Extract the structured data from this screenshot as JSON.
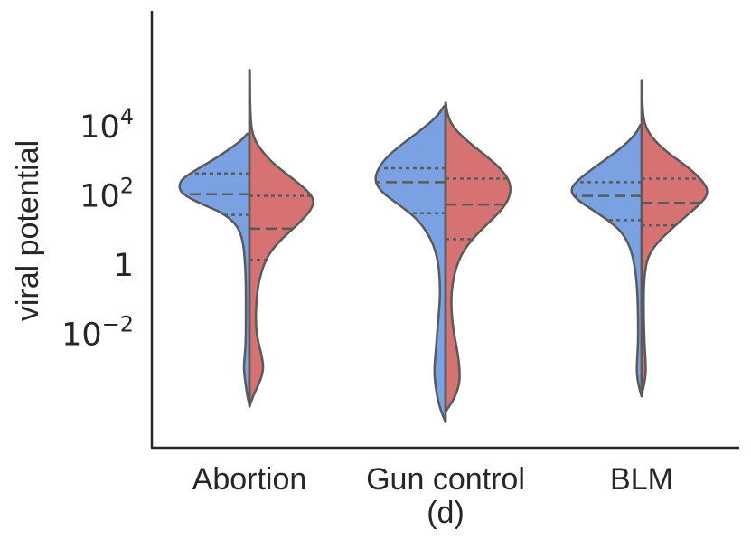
{
  "chart_data": {
    "type": "violin",
    "split": true,
    "scale": "log10",
    "ylabel": "viral potential",
    "caption": "(d)",
    "colors": {
      "left": "#7aa2e3",
      "right": "#d77272",
      "outline": "#5a5a5a",
      "axis": "#262626"
    },
    "yticks": [
      {
        "exp": "4",
        "label": "10"
      },
      {
        "exp": "2",
        "label": "10"
      },
      {
        "exp": "0",
        "label": "1"
      },
      {
        "exp": "-2",
        "label": "10"
      }
    ],
    "categories": [
      {
        "name": "Abortion",
        "min": -4.1,
        "max": 5.65,
        "left": {
          "top": 3.8,
          "bottom": -4.05,
          "profile": [
            [
              3.8,
              0.03
            ],
            [
              3.6,
              0.12
            ],
            [
              3.3,
              0.32
            ],
            [
              3.0,
              0.55
            ],
            [
              2.7,
              0.8
            ],
            [
              2.5,
              0.95
            ],
            [
              2.3,
              1.0
            ],
            [
              2.1,
              0.97
            ],
            [
              1.9,
              0.82
            ],
            [
              1.7,
              0.6
            ],
            [
              1.5,
              0.38
            ],
            [
              1.2,
              0.2
            ],
            [
              0.9,
              0.12
            ],
            [
              0.5,
              0.08
            ],
            [
              0,
              0.06
            ],
            [
              -0.6,
              0.05
            ],
            [
              -1.2,
              0.05
            ],
            [
              -2.0,
              0.05
            ],
            [
              -2.5,
              0.06
            ],
            [
              -2.9,
              0.08
            ],
            [
              -3.2,
              0.07
            ],
            [
              -3.5,
              0.05
            ],
            [
              -3.8,
              0.03
            ],
            [
              -4.05,
              0.0
            ]
          ],
          "quartiles": [
            1.45,
            2.05,
            2.65
          ]
        },
        "right": {
          "top": 5.65,
          "bottom": -4.1,
          "profile": [
            [
              5.65,
              0.005
            ],
            [
              4.5,
              0.01
            ],
            [
              3.9,
              0.03
            ],
            [
              3.5,
              0.1
            ],
            [
              3.0,
              0.3
            ],
            [
              2.6,
              0.55
            ],
            [
              2.2,
              0.8
            ],
            [
              1.9,
              0.92
            ],
            [
              1.6,
              0.88
            ],
            [
              1.2,
              0.7
            ],
            [
              0.8,
              0.48
            ],
            [
              0.4,
              0.3
            ],
            [
              0,
              0.2
            ],
            [
              -0.5,
              0.13
            ],
            [
              -1.0,
              0.1
            ],
            [
              -1.5,
              0.09
            ],
            [
              -2.0,
              0.1
            ],
            [
              -2.5,
              0.16
            ],
            [
              -2.9,
              0.2
            ],
            [
              -3.2,
              0.18
            ],
            [
              -3.5,
              0.12
            ],
            [
              -3.8,
              0.05
            ],
            [
              -4.1,
              0.0
            ]
          ],
          "quartiles": [
            0.15,
            1.05,
            2.0
          ]
        }
      },
      {
        "name": "Gun control",
        "min": -4.55,
        "max": 4.7,
        "left": {
          "top": 4.6,
          "bottom": -4.55,
          "profile": [
            [
              4.6,
              0.02
            ],
            [
              4.3,
              0.12
            ],
            [
              3.9,
              0.35
            ],
            [
              3.5,
              0.62
            ],
            [
              3.1,
              0.85
            ],
            [
              2.7,
              0.98
            ],
            [
              2.4,
              1.0
            ],
            [
              2.1,
              0.9
            ],
            [
              1.8,
              0.7
            ],
            [
              1.5,
              0.5
            ],
            [
              1.2,
              0.35
            ],
            [
              0.8,
              0.22
            ],
            [
              0.4,
              0.14
            ],
            [
              0,
              0.1
            ],
            [
              -0.5,
              0.08
            ],
            [
              -1.0,
              0.08
            ],
            [
              -1.5,
              0.1
            ],
            [
              -2.0,
              0.12
            ],
            [
              -2.5,
              0.14
            ],
            [
              -3.0,
              0.16
            ],
            [
              -3.4,
              0.15
            ],
            [
              -3.8,
              0.12
            ],
            [
              -4.2,
              0.07
            ],
            [
              -4.55,
              0.0
            ]
          ],
          "quartiles": [
            1.5,
            2.4,
            2.8
          ]
        },
        "right": {
          "top": 4.7,
          "bottom": -4.25,
          "profile": [
            [
              4.7,
              0.005
            ],
            [
              4.4,
              0.02
            ],
            [
              4.0,
              0.1
            ],
            [
              3.6,
              0.3
            ],
            [
              3.2,
              0.55
            ],
            [
              2.8,
              0.78
            ],
            [
              2.4,
              0.92
            ],
            [
              2.0,
              0.92
            ],
            [
              1.6,
              0.8
            ],
            [
              1.2,
              0.6
            ],
            [
              0.8,
              0.4
            ],
            [
              0.4,
              0.25
            ],
            [
              0,
              0.16
            ],
            [
              -0.5,
              0.1
            ],
            [
              -1.0,
              0.08
            ],
            [
              -1.5,
              0.09
            ],
            [
              -2.0,
              0.12
            ],
            [
              -2.5,
              0.17
            ],
            [
              -3.0,
              0.2
            ],
            [
              -3.4,
              0.2
            ],
            [
              -3.8,
              0.14
            ],
            [
              -4.1,
              0.05
            ],
            [
              -4.25,
              0.0
            ]
          ],
          "quartiles": [
            0.75,
            1.75,
            2.5
          ]
        }
      },
      {
        "name": "BLM",
        "min": -3.8,
        "max": 5.35,
        "left": {
          "top": 4.05,
          "bottom": -3.8,
          "profile": [
            [
              4.05,
              0.02
            ],
            [
              3.8,
              0.08
            ],
            [
              3.4,
              0.28
            ],
            [
              3.0,
              0.55
            ],
            [
              2.6,
              0.82
            ],
            [
              2.3,
              0.98
            ],
            [
              2.1,
              1.0
            ],
            [
              1.9,
              0.92
            ],
            [
              1.6,
              0.7
            ],
            [
              1.3,
              0.48
            ],
            [
              1.0,
              0.3
            ],
            [
              0.6,
              0.18
            ],
            [
              0.2,
              0.12
            ],
            [
              -0.3,
              0.08
            ],
            [
              -0.8,
              0.06
            ],
            [
              -1.5,
              0.05
            ],
            [
              -2.2,
              0.05
            ],
            [
              -2.6,
              0.06
            ],
            [
              -3.0,
              0.07
            ],
            [
              -3.3,
              0.06
            ],
            [
              -3.6,
              0.03
            ],
            [
              -3.8,
              0.0
            ]
          ],
          "quartiles": [
            1.3,
            2.0,
            2.4
          ]
        },
        "right": {
          "top": 5.35,
          "bottom": -3.75,
          "profile": [
            [
              5.35,
              0.005
            ],
            [
              4.5,
              0.01
            ],
            [
              4.0,
              0.05
            ],
            [
              3.6,
              0.18
            ],
            [
              3.2,
              0.4
            ],
            [
              2.8,
              0.68
            ],
            [
              2.4,
              0.88
            ],
            [
              2.1,
              0.95
            ],
            [
              1.8,
              0.85
            ],
            [
              1.4,
              0.62
            ],
            [
              1.0,
              0.4
            ],
            [
              0.6,
              0.2
            ],
            [
              0.2,
              0.08
            ],
            [
              -0.3,
              0.04
            ],
            [
              -0.8,
              0.03
            ],
            [
              -1.5,
              0.03
            ],
            [
              -2.2,
              0.04
            ],
            [
              -2.6,
              0.05
            ],
            [
              -3.0,
              0.06
            ],
            [
              -3.3,
              0.05
            ],
            [
              -3.6,
              0.02
            ],
            [
              -3.75,
              0.0
            ]
          ],
          "quartiles": [
            1.15,
            1.8,
            2.5
          ]
        }
      }
    ]
  }
}
